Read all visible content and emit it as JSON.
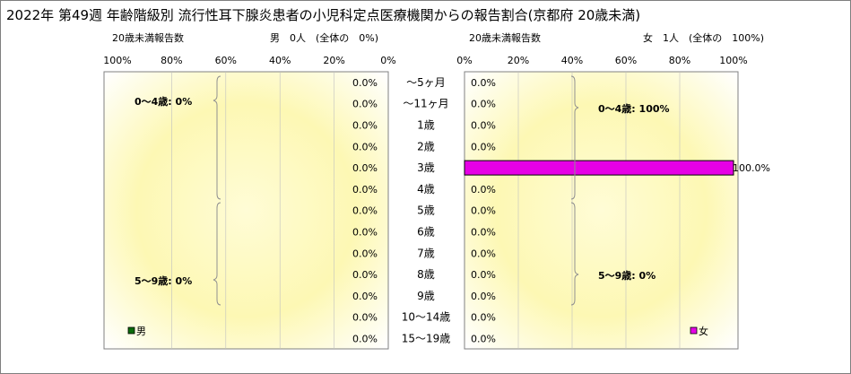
{
  "chart_data": {
    "type": "bar",
    "title": "2022年 第49週 年齢階級別 流行性耳下腺炎患者の小児科定点医療機関からの報告割合(京都府 20歳未満)",
    "categories": [
      "～5ヶ月",
      "～11ヶ月",
      "1歳",
      "2歳",
      "3歳",
      "4歳",
      "5歳",
      "6歳",
      "7歳",
      "8歳",
      "9歳",
      "10～14歳",
      "15～19歳"
    ],
    "x_tick_labels_left": [
      "100%",
      "80%",
      "60%",
      "40%",
      "20%",
      "0%"
    ],
    "x_tick_labels_right": [
      "0%",
      "20%",
      "40%",
      "60%",
      "80%",
      "100%"
    ],
    "xlim": [
      0,
      100
    ],
    "series": [
      {
        "name": "男",
        "color": "#0a6b0a",
        "values": [
          0,
          0,
          0,
          0,
          0,
          0,
          0,
          0,
          0,
          0,
          0,
          0,
          0
        ],
        "value_labels": [
          "0.0%",
          "0.0%",
          "0.0%",
          "0.0%",
          "0.0%",
          "0.0%",
          "0.0%",
          "0.0%",
          "0.0%",
          "0.0%",
          "0.0%",
          "0.0%",
          "0.0%"
        ],
        "header": {
          "count_label": "20歳未満報告数",
          "summary": "男　0人　(全体の　0%)"
        },
        "groups": [
          {
            "label": "0～4歳: 0%"
          },
          {
            "label": "5～9歳: 0%"
          }
        ]
      },
      {
        "name": "女",
        "color": "#e600e6",
        "values": [
          0,
          0,
          0,
          0,
          100,
          0,
          0,
          0,
          0,
          0,
          0,
          0,
          0
        ],
        "value_labels": [
          "0.0%",
          "0.0%",
          "0.0%",
          "0.0%",
          "100.0%",
          "0.0%",
          "0.0%",
          "0.0%",
          "0.0%",
          "0.0%",
          "0.0%",
          "0.0%",
          "0.0%"
        ],
        "header": {
          "count_label": "20歳未満報告数",
          "summary": "女　1人　(全体の　100%)"
        },
        "groups": [
          {
            "label": "0～4歳: 100%"
          },
          {
            "label": "5～9歳: 0%"
          }
        ]
      }
    ],
    "legend": [
      {
        "name": "男",
        "placement": "bottom-left"
      },
      {
        "name": "女",
        "placement": "bottom-right"
      }
    ],
    "grid": true,
    "background": "gradient-yellow"
  }
}
